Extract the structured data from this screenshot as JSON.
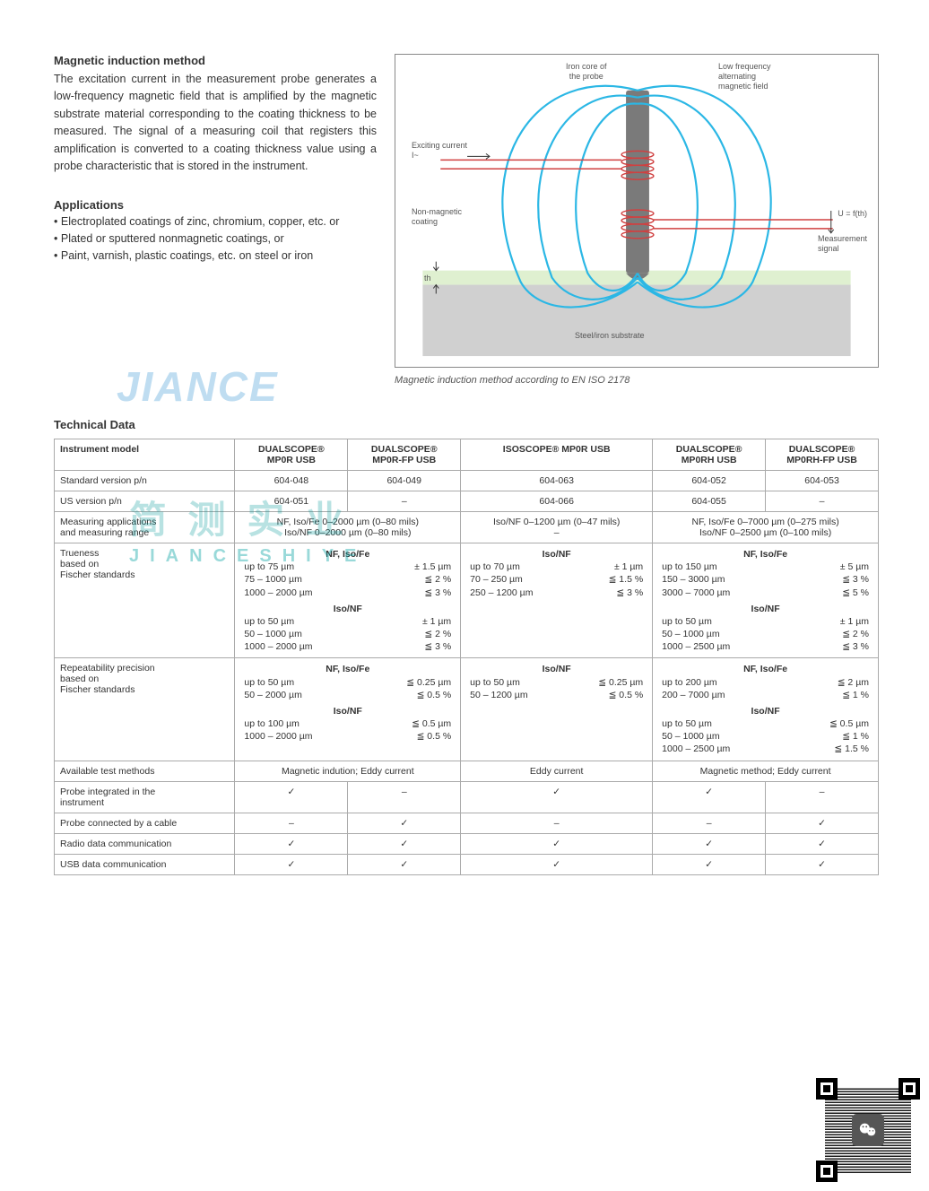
{
  "intro": {
    "heading": "Magnetic induction method",
    "text": "The excitation current in the measurement probe generates a low-frequency magnetic field that is amplified by the magnetic substrate material corresponding to the coating thickness to be measured. The signal of a measuring coil that registers this amplification is converted to a coating thickness value using a probe characteristic that is stored in the instrument."
  },
  "applications": {
    "heading": "Applications",
    "items": [
      "Electroplated coatings of zinc, chromium, copper, etc. or",
      "Plated or sputtered nonmagnetic coatings, or",
      "Paint, varnish, plastic coatings, etc. on steel or iron"
    ]
  },
  "diagram": {
    "iron_core": "Iron core of\nthe probe",
    "low_freq": "Low frequency\nalternating\nmagnetic field",
    "exciting": "Exciting current\nI~",
    "nonmag": "Non-magnetic\ncoating",
    "u": "U = f(th)",
    "meas": "Measurement\nsignal",
    "th": "th",
    "substrate": "Steel/iron substrate",
    "caption": "Magnetic induction method according to EN ISO 2178",
    "colors": {
      "field_line": "#2bb7e5",
      "probe_fill": "#7a7a7a",
      "coil_red": "#d04040",
      "coating": "#dff0d0",
      "substrate": "#d0d0d0"
    }
  },
  "watermark1": "JIANCE",
  "watermark2_main": "简 测 实 业",
  "watermark2_sub": "JIANCESHIYE",
  "tech_heading": "Technical Data",
  "table": {
    "cols": [
      "Instrument model",
      "DUALSCOPE®\nMP0R USB",
      "DUALSCOPE®\nMP0R-FP USB",
      "ISOSCOPE® MP0R USB",
      "DUALSCOPE®\nMP0RH USB",
      "DUALSCOPE®\nMP0RH-FP USB"
    ],
    "std_row": {
      "label": "Standard version p/n",
      "vals": [
        "604-048",
        "604-049",
        "604-063",
        "604-052",
        "604-053"
      ]
    },
    "us_row": {
      "label": "US version p/n",
      "vals": [
        "604-051",
        "–",
        "604-066",
        "604-055",
        "–"
      ]
    },
    "meas_row": {
      "label": "Measuring applications\nand measuring range",
      "g1": "NF, Iso/Fe 0–2000 µm (0–80 mils)\nIso/NF 0–2000 µm (0–80 mils)",
      "g2": "Iso/NF 0–1200 µm (0–47 mils)\n–",
      "g3": "NF, Iso/Fe 0–7000 µm (0–275 mils)\nIso/NF 0–2500 µm (0–100 mils)"
    },
    "true_row": {
      "label": "Trueness\nbased on\nFischer standards",
      "g1_h1": "NF, Iso/Fe",
      "g1_l": [
        [
          "up to 75 µm",
          "± 1.5 µm"
        ],
        [
          "75 – 1000 µm",
          "≦ 2 %"
        ],
        [
          "1000 – 2000 µm",
          "≦ 3 %"
        ]
      ],
      "g1_h2": "Iso/NF",
      "g1_l2": [
        [
          "up to 50 µm",
          "± 1 µm"
        ],
        [
          "50 – 1000 µm",
          "≦ 2 %"
        ],
        [
          "1000 – 2000 µm",
          "≦ 3 %"
        ]
      ],
      "g2_h": "Iso/NF",
      "g2_l": [
        [
          "up to 70 µm",
          "± 1 µm"
        ],
        [
          "70 – 250 µm",
          "≦ 1.5 %"
        ],
        [
          "250 – 1200 µm",
          "≦ 3 %"
        ]
      ],
      "g3_h1": "NF, Iso/Fe",
      "g3_l": [
        [
          "up to 150 µm",
          "± 5 µm"
        ],
        [
          "150 – 3000 µm",
          "≦ 3 %"
        ],
        [
          "3000 – 7000 µm",
          "≦ 5 %"
        ]
      ],
      "g3_h2": "Iso/NF",
      "g3_l2": [
        [
          "up to 50 µm",
          "± 1 µm"
        ],
        [
          "50 – 1000 µm",
          "≦ 2 %"
        ],
        [
          "1000 – 2500 µm",
          "≦ 3 %"
        ]
      ]
    },
    "rep_row": {
      "label": "Repeatability precision\nbased on\nFischer standards",
      "g1_h1": "NF, Iso/Fe",
      "g1_l": [
        [
          "up to 50 µm",
          "≦ 0.25 µm"
        ],
        [
          "50 – 2000 µm",
          "≦ 0.5 %"
        ]
      ],
      "g1_h2": "Iso/NF",
      "g1_l2": [
        [
          "up to 100 µm",
          "≦ 0.5 µm"
        ],
        [
          "1000 – 2000 µm",
          "≦ 0.5 %"
        ]
      ],
      "g2_h": "Iso/NF",
      "g2_l": [
        [
          "up to 50 µm",
          "≦ 0.25 µm"
        ],
        [
          "50 – 1200 µm",
          "≦ 0.5 %"
        ]
      ],
      "g3_h1": "NF, Iso/Fe",
      "g3_l": [
        [
          "up to 200 µm",
          "≦ 2 µm"
        ],
        [
          "200 – 7000 µm",
          "≦ 1 %"
        ]
      ],
      "g3_h2": "Iso/NF",
      "g3_l2": [
        [
          "up to 50 µm",
          "≦ 0.5 µm"
        ],
        [
          "50 – 1000 µm",
          "≦ 1 %"
        ],
        [
          "1000 – 2500 µm",
          "≦ 1.5 %"
        ]
      ]
    },
    "methods_row": {
      "label": "Available test methods",
      "g1": "Magnetic indution; Eddy current",
      "g2": "Eddy current",
      "g3": "Magnetic method; Eddy current"
    },
    "probe_int": {
      "label": "Probe integrated in the\ninstrument",
      "vals": [
        "✓",
        "–",
        "✓",
        "✓",
        "–"
      ]
    },
    "probe_cable": {
      "label": "Probe connected by a cable",
      "vals": [
        "–",
        "✓",
        "–",
        "–",
        "✓"
      ]
    },
    "radio": {
      "label": "Radio data communication",
      "vals": [
        "✓",
        "✓",
        "✓",
        "✓",
        "✓"
      ]
    },
    "usb": {
      "label": "USB data communication",
      "vals": [
        "✓",
        "✓",
        "✓",
        "✓",
        "✓"
      ]
    }
  }
}
